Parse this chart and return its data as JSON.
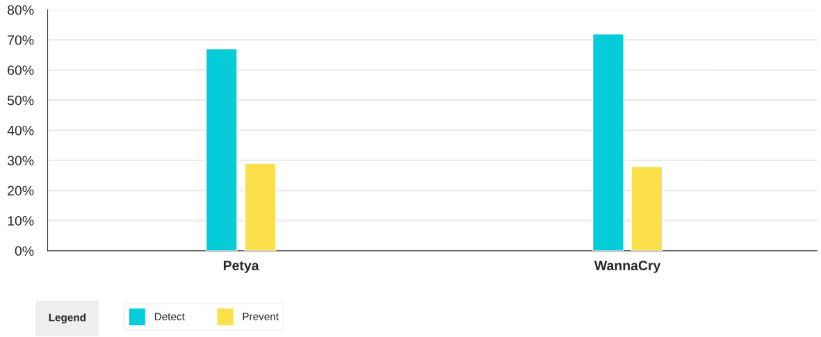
{
  "chart_data": {
    "type": "bar",
    "categories": [
      "Petya",
      "WannaCry"
    ],
    "series": [
      {
        "name": "Detect",
        "color": "#06cbd9",
        "values": [
          67,
          72
        ]
      },
      {
        "name": "Prevent",
        "color": "#fbe04c",
        "values": [
          29,
          28
        ]
      }
    ],
    "ylim": [
      0,
      80
    ],
    "yticks": [
      {
        "value": 0,
        "label": "0%"
      },
      {
        "value": 10,
        "label": "10%"
      },
      {
        "value": 20,
        "label": "20%"
      },
      {
        "value": 30,
        "label": "30%"
      },
      {
        "value": 40,
        "label": "40%"
      },
      {
        "value": 50,
        "label": "50%"
      },
      {
        "value": 60,
        "label": "60%"
      },
      {
        "value": 70,
        "label": "70%"
      },
      {
        "value": 80,
        "label": "80%"
      }
    ],
    "grid": "y",
    "legend": "bottom left",
    "legend_title": "Legend"
  }
}
